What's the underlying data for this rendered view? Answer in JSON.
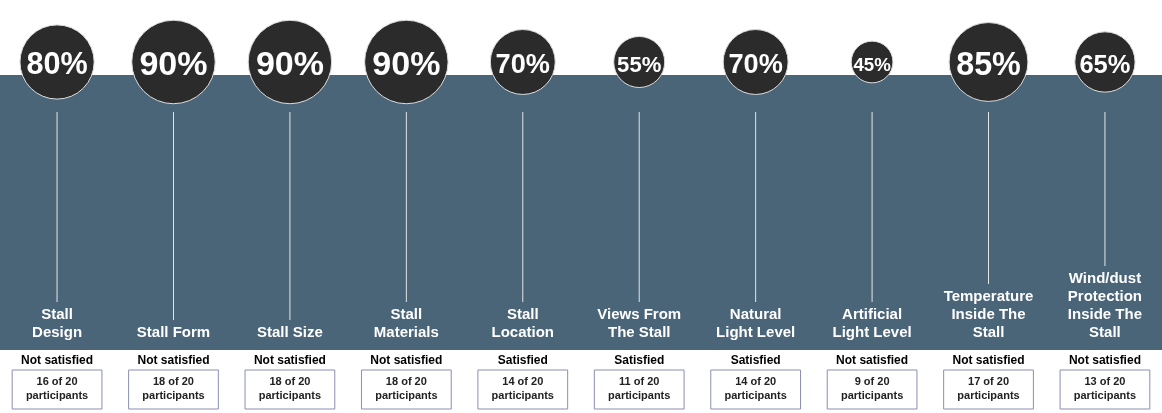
{
  "chart_data": {
    "type": "other",
    "categories": [
      "Stall Design",
      "Stall Form",
      "Stall Size",
      "Stall Materials",
      "Stall Location",
      "Views From The Stall",
      "Natural Light Level",
      "Artificial Light Level",
      "Temperature Inside The Stall",
      "Wind/dust Protection Inside The Stall"
    ],
    "values": [
      80,
      90,
      90,
      90,
      70,
      55,
      70,
      45,
      85,
      65
    ],
    "value_labels": [
      "80%",
      "90%",
      "90%",
      "90%",
      "70%",
      "55%",
      "70%",
      "45%",
      "85%",
      "65%"
    ],
    "annotations": [
      {
        "text": "Not satisfied",
        "x": "Stall Design"
      },
      {
        "text": "16 of 20 participants",
        "x": "Stall Design"
      },
      {
        "text": "Not satisfied",
        "x": "Stall Form"
      },
      {
        "text": "18 of 20 participants",
        "x": "Stall Form"
      },
      {
        "text": "Not satisfied",
        "x": "Stall Size"
      },
      {
        "text": "18 of 20 participants",
        "x": "Stall Size"
      },
      {
        "text": "Not satisfied",
        "x": "Stall Materials"
      },
      {
        "text": "18 of 20 participants",
        "x": "Stall Materials"
      },
      {
        "text": "Satisfied",
        "x": "Stall Location"
      },
      {
        "text": "14 of 20 participants",
        "x": "Stall Location"
      },
      {
        "text": "Satisfied",
        "x": "Views From The Stall"
      },
      {
        "text": "11 of 20 participants",
        "x": "Views From The Stall"
      },
      {
        "text": "Satisfied",
        "x": "Natural Light Level"
      },
      {
        "text": "14 of 20 participants",
        "x": "Natural Light Level"
      },
      {
        "text": "Not satisfied",
        "x": "Artificial Light Level"
      },
      {
        "text": "9 of 20 participants",
        "x": "Artificial Light Level"
      },
      {
        "text": "Not satisfied",
        "x": "Temperature Inside The Stall"
      },
      {
        "text": "17 of 20 participants",
        "x": "Temperature Inside The Stall"
      },
      {
        "text": "Not satisfied",
        "x": "Wind/dust Protection Inside The Stall"
      },
      {
        "text": "13 of 20 participants",
        "x": "Wind/dust Protection Inside The Stall"
      }
    ]
  }
}
